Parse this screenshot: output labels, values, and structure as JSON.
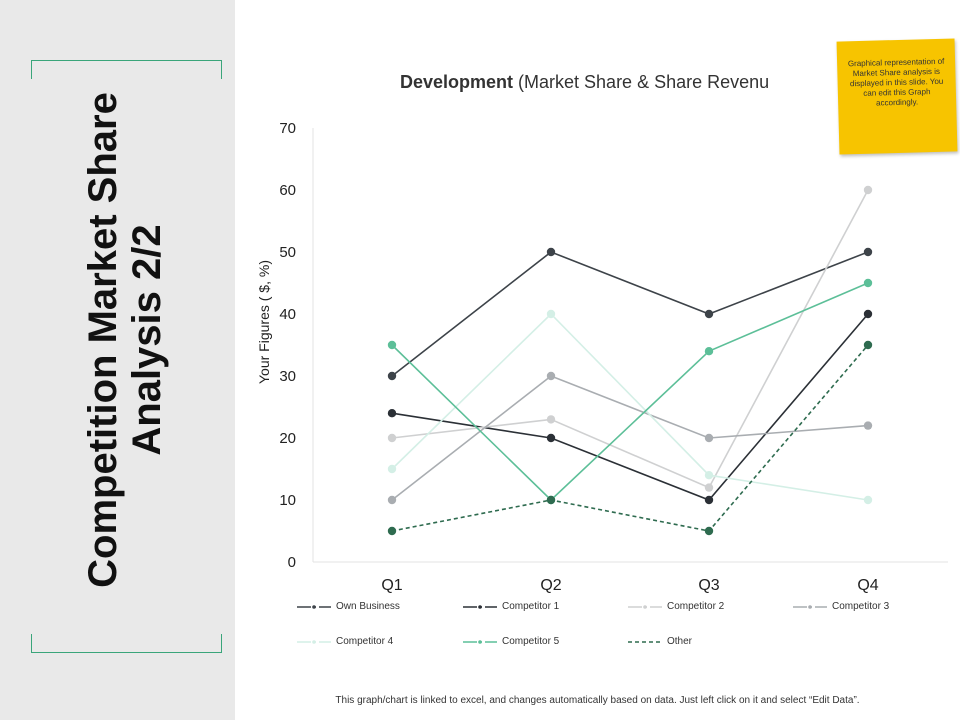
{
  "slide": {
    "title_line1": "Competition Market Share",
    "title_line2": "Analysis 2/2",
    "note": "Graphical representation of Market Share analysis is displayed in this slide. You can edit this Graph accordingly.",
    "footer": "This graph/chart is linked to excel, and changes automatically based on data. Just left click on it and select “Edit Data”."
  },
  "chart_data": {
    "type": "line",
    "title_bold": "Development",
    "title_rest": " (Market Share & Share Revenu",
    "ylabel": "Your Figures ( $, %)",
    "xlabel": "",
    "categories": [
      "Q1",
      "Q2",
      "Q3",
      "Q4"
    ],
    "ylim": [
      0,
      70
    ],
    "yticks": [
      0,
      10,
      20,
      30,
      40,
      50,
      60,
      70
    ],
    "grid": false,
    "legend": "bottom",
    "series": [
      {
        "name": "Own Business",
        "values": [
          30,
          50,
          40,
          50
        ],
        "color": "#3d4349",
        "dash": false,
        "marker": true
      },
      {
        "name": "Competitor 1",
        "values": [
          24,
          20,
          10,
          40
        ],
        "color": "#2b3036",
        "dash": false,
        "marker": true
      },
      {
        "name": "Competitor 2",
        "values": [
          20,
          23,
          12,
          60
        ],
        "color": "#cfd0d1",
        "dash": false,
        "marker": true
      },
      {
        "name": "Competitor 3",
        "values": [
          10,
          30,
          20,
          22
        ],
        "color": "#a9adb1",
        "dash": false,
        "marker": true
      },
      {
        "name": "Competitor 4",
        "values": [
          15,
          40,
          14,
          10
        ],
        "color": "#d4efe6",
        "dash": false,
        "marker": true
      },
      {
        "name": "Competitor 5",
        "values": [
          35,
          10,
          34,
          45
        ],
        "color": "#5cbf98",
        "dash": false,
        "marker": true
      },
      {
        "name": "Other",
        "values": [
          5,
          10,
          5,
          35
        ],
        "color": "#2e6b4f",
        "dash": true,
        "marker": true
      }
    ]
  }
}
